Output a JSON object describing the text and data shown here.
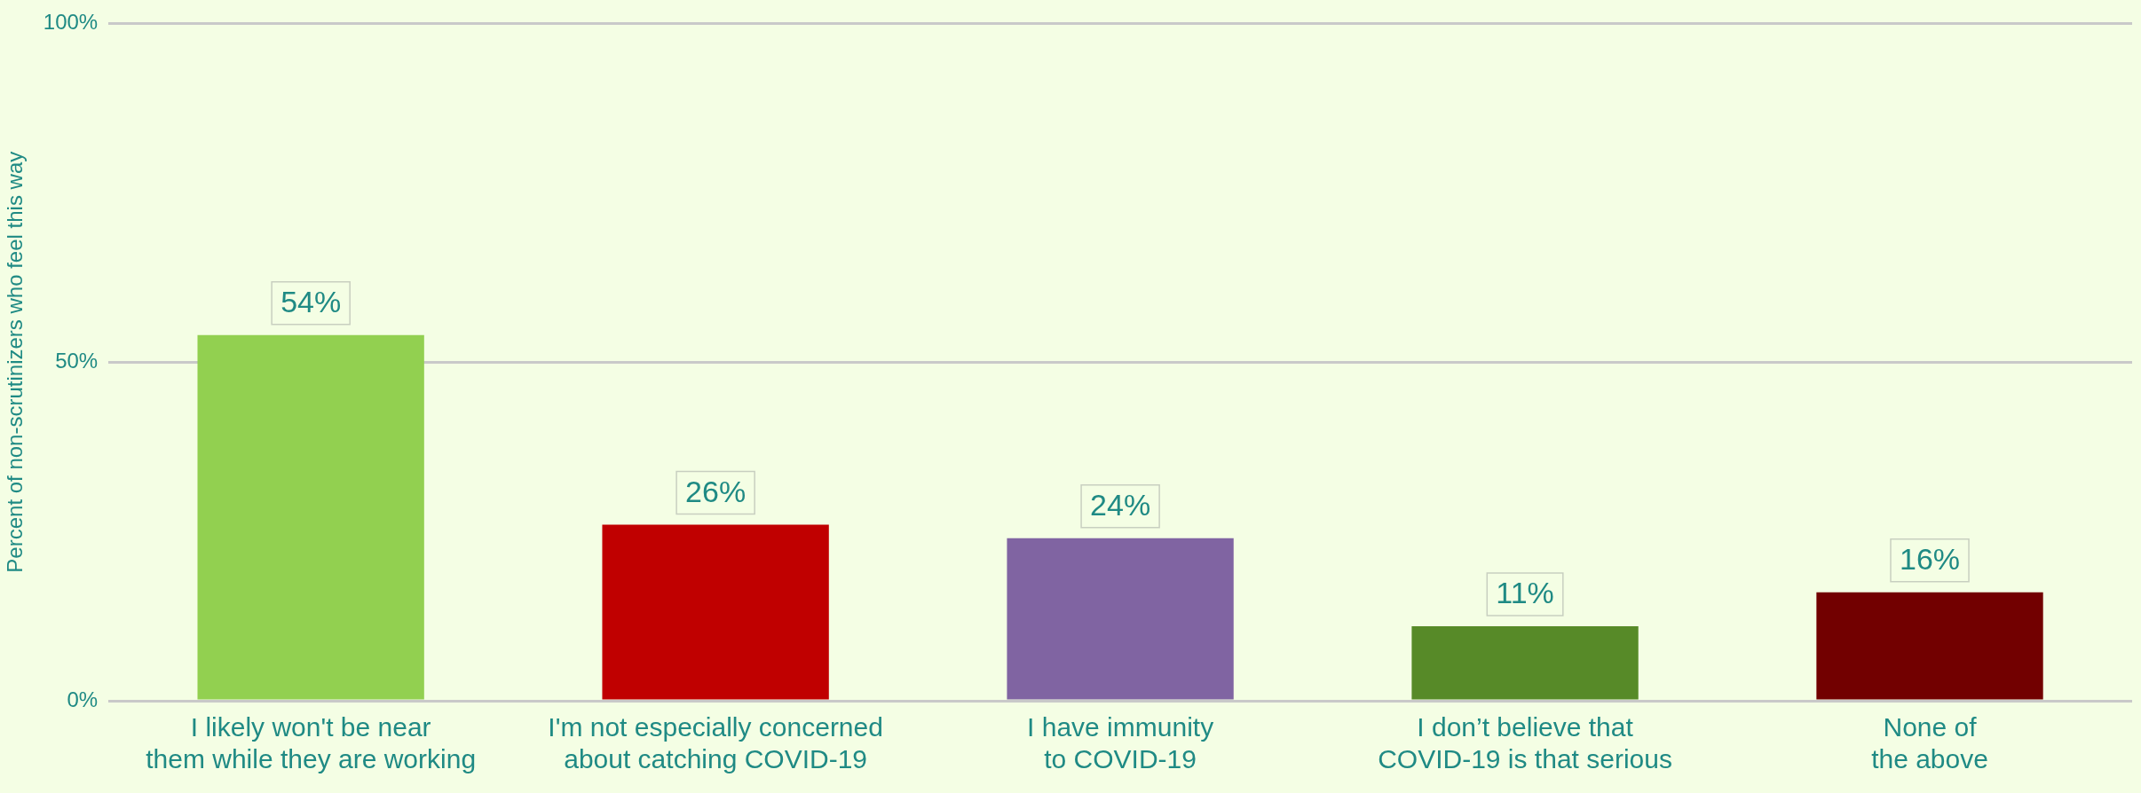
{
  "chart_data": {
    "type": "bar",
    "ylabel": "Percent of non-scrutinizers who feel this way",
    "categories": [
      "I likely won't be near them while they are working",
      "I'm not especially concerned about catching COVID-19",
      "I have immunity to COVID-19",
      "I don’t believe that COVID-19 is that serious",
      "None of the above"
    ],
    "values": [
      54,
      26,
      24,
      11,
      16
    ],
    "colors": [
      "#92d050",
      "#c00000",
      "#8064a2",
      "#578a28",
      "#720000"
    ],
    "value_labels": [
      "54%",
      "26%",
      "24%",
      "11%",
      "16%"
    ],
    "ylim": [
      0,
      100
    ],
    "yticks": [
      {
        "value": 0,
        "label": "0%"
      },
      {
        "value": 50,
        "label": "50%"
      },
      {
        "value": 100,
        "label": "100%"
      }
    ],
    "grid": "y",
    "legend": false
  }
}
